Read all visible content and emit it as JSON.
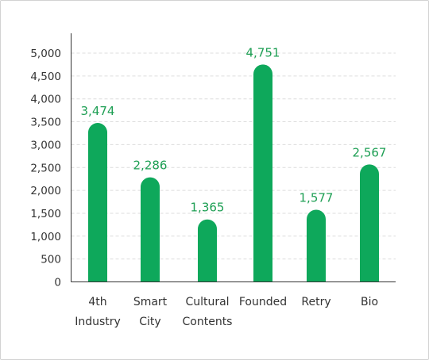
{
  "chart_data": {
    "type": "bar",
    "categories": [
      [
        "4th",
        "Industry"
      ],
      [
        "Smart",
        "City"
      ],
      [
        "Cultural",
        "Contents"
      ],
      [
        "Founded"
      ],
      [
        "Retry"
      ],
      [
        "Bio"
      ]
    ],
    "values": [
      3474,
      2286,
      1365,
      4751,
      1577,
      2567
    ],
    "data_labels": [
      "3,474",
      "2,286",
      "1,365",
      "4,751",
      "1,577",
      "2,567"
    ],
    "y_ticks": [
      0,
      500,
      1000,
      1500,
      2000,
      2500,
      3000,
      3500,
      4000,
      4500,
      5000
    ],
    "y_tick_labels": [
      "0",
      "500",
      "1,000",
      "1,500",
      "2,000",
      "2,500",
      "3,000",
      "3,500",
      "4,000",
      "4,500",
      "5,000"
    ],
    "ylim": [
      0,
      5000
    ],
    "grid": true,
    "grid_style": "dashed",
    "legend": "none",
    "bar_color": "#0ea85b",
    "label_color": "#1e9f54"
  }
}
